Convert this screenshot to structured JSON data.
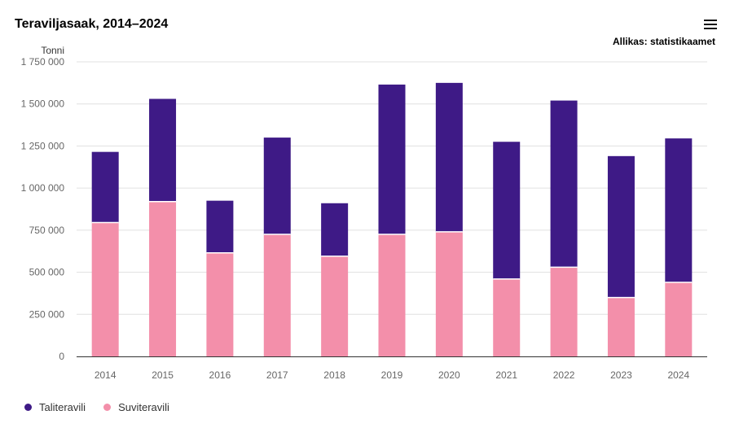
{
  "header": {
    "title": "Teraviljasaak, 2014–2024",
    "source": "Allikas: statistikaamet"
  },
  "icons": {
    "menu": "hamburger-menu-icon"
  },
  "colors": {
    "winter": "#3e1a86",
    "summer": "#f38faa",
    "grid": "#e0e0e0",
    "axis": "#333333"
  },
  "chart_data": {
    "type": "bar",
    "stacked": true,
    "title": "Teraviljasaak, 2014–2024",
    "ylabel": "Tonni",
    "xlabel": "",
    "ylim": [
      0,
      1750000
    ],
    "yticks": [
      0,
      250000,
      500000,
      750000,
      1000000,
      1250000,
      1500000,
      1750000
    ],
    "ytick_labels": [
      "0",
      "250 000",
      "500 000",
      "750 000",
      "1 000 000",
      "1 250 000",
      "1 500 000",
      "1 750 000"
    ],
    "categories": [
      "2014",
      "2015",
      "2016",
      "2017",
      "2018",
      "2019",
      "2020",
      "2021",
      "2022",
      "2023",
      "2024"
    ],
    "series": [
      {
        "name": "Suviteravili",
        "color": "#f38faa",
        "values": [
          795000,
          920000,
          615000,
          725000,
          595000,
          725000,
          740000,
          460000,
          530000,
          350000,
          440000
        ]
      },
      {
        "name": "Taliteravili",
        "color": "#3e1a86",
        "values": [
          420000,
          610000,
          310000,
          575000,
          315000,
          890000,
          885000,
          815000,
          990000,
          840000,
          855000
        ]
      }
    ],
    "legend": [
      "Taliteravili",
      "Suviteravili"
    ],
    "legend_position": "bottom-left",
    "grid": true
  }
}
